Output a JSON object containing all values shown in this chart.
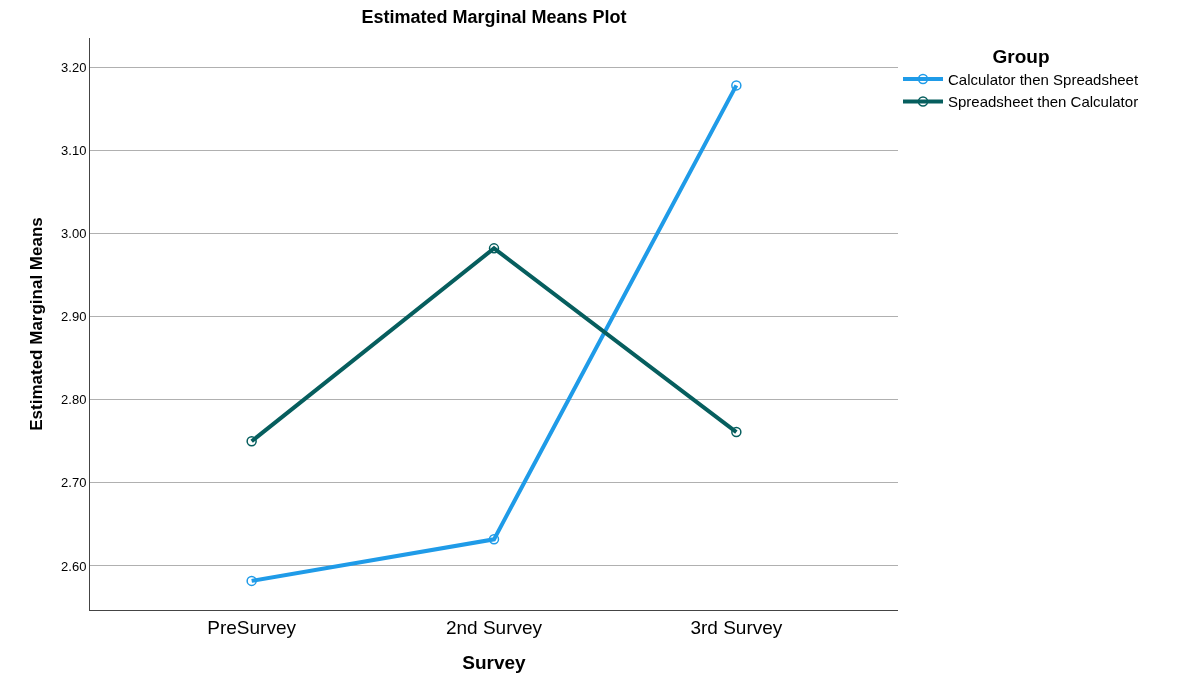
{
  "chart_data": {
    "type": "line",
    "title": "Estimated Marginal Means Plot",
    "xlabel": "Survey",
    "ylabel": "Estimated Marginal Means",
    "legend_title": "Group",
    "categories": [
      "PreSurvey",
      "2nd Survey",
      "3rd Survey"
    ],
    "series": [
      {
        "name": "Calculator then Spreadsheet",
        "color": "#1f9be8",
        "values": [
          2.582,
          2.632,
          3.178
        ]
      },
      {
        "name": "Spreadsheet then Calculator",
        "color": "#065e5e",
        "values": [
          2.75,
          2.982,
          2.761
        ]
      }
    ],
    "ylim": [
      2.547,
      3.235
    ],
    "yticks": [
      {
        "value": 2.6,
        "label": "2.60"
      },
      {
        "value": 2.7,
        "label": "2.70"
      },
      {
        "value": 2.8,
        "label": "2.80"
      },
      {
        "value": 2.9,
        "label": "2.90"
      },
      {
        "value": 3.0,
        "label": "3.00"
      },
      {
        "value": 3.1,
        "label": "3.10"
      },
      {
        "value": 3.2,
        "label": "3.20"
      }
    ],
    "grid": "y",
    "legend": "top right",
    "marker": "circle",
    "line_style": "solid"
  }
}
